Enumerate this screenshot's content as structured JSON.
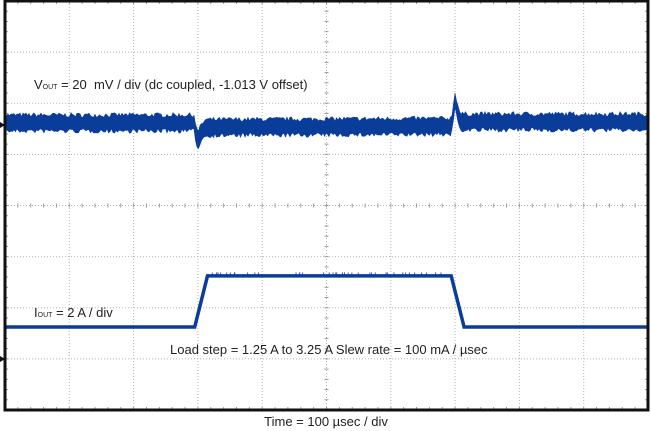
{
  "chart_data": {
    "type": "line",
    "title": "",
    "xlabel": "Time = 100 µsec / div",
    "xlim_us": [
      0,
      1000
    ],
    "x_divisions": 10,
    "y_divisions": 8,
    "grid": true,
    "trace_color": "#0a3d9a",
    "annotations": {
      "vout_label_main": "V",
      "vout_label_sub": "OUT",
      "vout_label_rest": " = 20  mV / div (dc coupled, -1.013 V offset)",
      "iout_label_main": "I",
      "iout_label_sub": "OUT",
      "iout_label_rest": " = 2 A / div",
      "load_step": "Load step = 1.25 A to 3.25 A  Slew rate = 100 mA / µsec"
    },
    "series": [
      {
        "name": "VOUT",
        "unit": "mV (relative to -1.013 V offset)",
        "scale_per_div": 20,
        "noise_peak_mV": 4,
        "points": [
          [
            0,
            0.8
          ],
          [
            295,
            0.8
          ],
          [
            297,
            -4
          ],
          [
            300,
            -6
          ],
          [
            305,
            -3
          ],
          [
            312,
            -1
          ],
          [
            694,
            -0.5
          ],
          [
            697,
            4
          ],
          [
            700,
            10
          ],
          [
            703,
            6
          ],
          [
            708,
            1.2
          ],
          [
            1000,
            1.2
          ]
        ]
      },
      {
        "name": "IOUT",
        "unit": "A",
        "scale_per_div": 2,
        "points": [
          [
            0,
            1.25
          ],
          [
            295,
            1.25
          ],
          [
            315,
            3.25
          ],
          [
            694,
            3.25
          ],
          [
            714,
            1.25
          ],
          [
            1000,
            1.25
          ]
        ]
      }
    ]
  }
}
